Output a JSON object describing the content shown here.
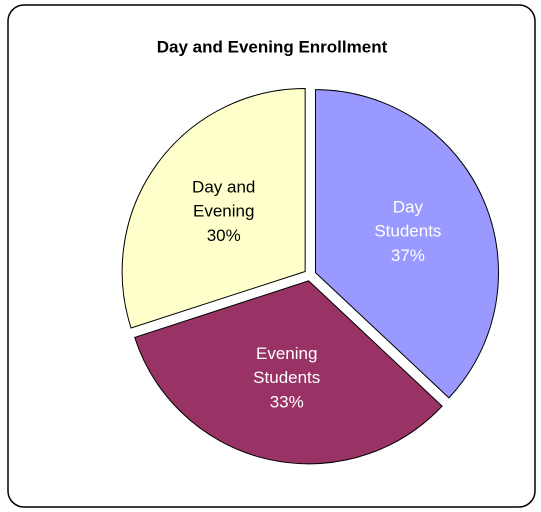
{
  "chart_data": {
    "type": "pie",
    "title": "Day and Evening Enrollment",
    "categories": [
      "Day Students",
      "Evening Students",
      "Day and Evening"
    ],
    "values": [
      37,
      33,
      30
    ],
    "value_labels": [
      "37%",
      "33%",
      "30%"
    ],
    "colors": [
      "#9999ff",
      "#993366",
      "#ffffcc"
    ]
  }
}
